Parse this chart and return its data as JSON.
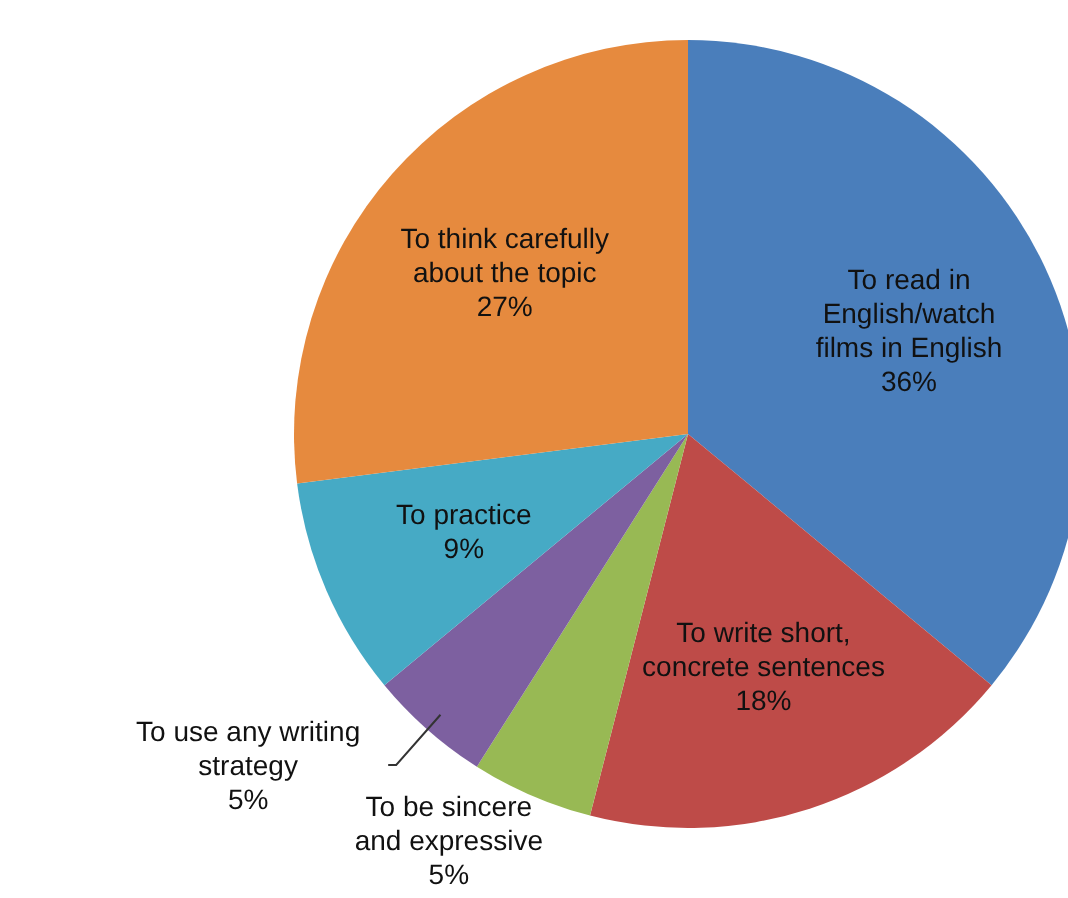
{
  "chart_data": {
    "type": "pie",
    "categories": [
      "To read in English/watch films in English",
      "To write short, concrete sentences",
      "To be sincere and expressive",
      "To use any writing strategy",
      "To practice",
      "To think carefully about the topic"
    ],
    "values": [
      36,
      18,
      5,
      5,
      9,
      27
    ],
    "value_labels": [
      "36%",
      "18%",
      "5%",
      "5%",
      "9%",
      "27%"
    ],
    "colors": [
      "#4a7ebb",
      "#be4b48",
      "#98b954",
      "#7d60a0",
      "#46aac5",
      "#e68a3e"
    ],
    "legend": false
  }
}
